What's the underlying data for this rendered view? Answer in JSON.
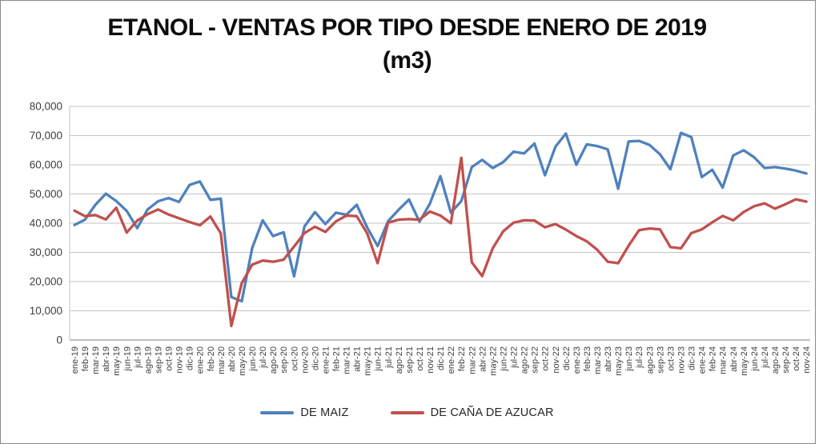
{
  "title": {
    "line1": "ETANOL - VENTAS POR TIPO DESDE ENERO DE 2019",
    "line2": "(m3)"
  },
  "legend": {
    "items": [
      {
        "label": "DE MAIZ",
        "color": "#4F81BD"
      },
      {
        "label": "DE CAÑA DE AZUCAR",
        "color": "#C0504D"
      }
    ]
  },
  "axes": {
    "y_tick_labels": [
      "0",
      "10,000",
      "20,000",
      "30,000",
      "40,000",
      "50,000",
      "60,000",
      "70,000",
      "80,000"
    ]
  },
  "colors": {
    "maiz_line": "#4F81BD",
    "cana_line": "#C0504D",
    "gridline": "#C3C3C3",
    "axis_line": "#808080",
    "tick_text": "#3f3f3f",
    "title_text": "#0d0d0d"
  },
  "chart_data": {
    "type": "line",
    "title": "ETANOL - VENTAS POR TIPO DESDE ENERO DE 2019 (m3)",
    "xlabel": "",
    "ylabel": "",
    "ylim": [
      0,
      80000
    ],
    "y_tick_interval": 10000,
    "grid": true,
    "legend_position": "bottom",
    "x": [
      "ene-19",
      "feb-19",
      "mar-19",
      "abr-19",
      "may-19",
      "jun-19",
      "jul-19",
      "ago-19",
      "sep-19",
      "oct-19",
      "nov-19",
      "dic-19",
      "ene-20",
      "feb-20",
      "mar-20",
      "abr-20",
      "may-20",
      "jun-20",
      "jul-20",
      "ago-20",
      "sep-20",
      "oct-20",
      "nov-20",
      "dic-20",
      "ene-21",
      "feb-21",
      "mar-21",
      "abr-21",
      "may-21",
      "jun-21",
      "jul-21",
      "ago-21",
      "sep-21",
      "oct-21",
      "nov-21",
      "dic-21",
      "ene-22",
      "feb-22",
      "mar-22",
      "abr-22",
      "may-22",
      "jun-22",
      "jul-22",
      "ago-22",
      "sep-22",
      "oct-22",
      "nov-22",
      "dic-22",
      "ene-23",
      "feb-23",
      "mar-23",
      "abr-23",
      "may-23",
      "jun-23",
      "jul-23",
      "ago-23",
      "sep-23",
      "oct-23",
      "nov-23",
      "dic-23",
      "ene-24",
      "feb-24",
      "mar-24",
      "abr-24",
      "may-24",
      "jun-24",
      "jul-24",
      "ago-24",
      "sep-24",
      "oct-24",
      "nov-24"
    ],
    "series": [
      {
        "name": "DE MAIZ",
        "color": "#4F81BD",
        "values": [
          39400,
          41200,
          46300,
          50100,
          47600,
          44200,
          38300,
          44700,
          47500,
          48600,
          47300,
          53100,
          54300,
          48000,
          48400,
          14700,
          13300,
          31500,
          41000,
          35600,
          36900,
          21800,
          38900,
          43800,
          39700,
          43600,
          42900,
          46300,
          38500,
          32200,
          40700,
          44600,
          48100,
          40500,
          46700,
          56100,
          43600,
          47600,
          59200,
          61700,
          58900,
          60900,
          64500,
          63900,
          67300,
          56400,
          66200,
          70700,
          60000,
          67000,
          66400,
          65300,
          51800,
          68000,
          68200,
          66800,
          63600,
          58500,
          70900,
          69500,
          55800,
          58300,
          52200,
          63200,
          65000,
          62600,
          58900,
          59200,
          58700,
          58000,
          57000
        ]
      },
      {
        "name": "DE CAÑA DE AZUCAR",
        "color": "#C0504D",
        "values": [
          44300,
          42400,
          42800,
          41300,
          45300,
          36800,
          40900,
          43100,
          44700,
          43000,
          41700,
          40400,
          39300,
          42300,
          36500,
          4800,
          19500,
          25800,
          27200,
          26800,
          27500,
          32000,
          36600,
          38800,
          37000,
          40600,
          42600,
          42400,
          36500,
          26300,
          40200,
          41200,
          41400,
          41200,
          44000,
          42600,
          40000,
          62400,
          26600,
          21900,
          31400,
          37200,
          40200,
          41000,
          40900,
          38600,
          39700,
          37800,
          35600,
          33800,
          30900,
          26800,
          26300,
          32300,
          37600,
          38200,
          37900,
          31800,
          31400,
          36600,
          37900,
          40300,
          42500,
          41000,
          43800,
          45800,
          46800,
          45000,
          46500,
          48200,
          47400
        ]
      }
    ]
  }
}
